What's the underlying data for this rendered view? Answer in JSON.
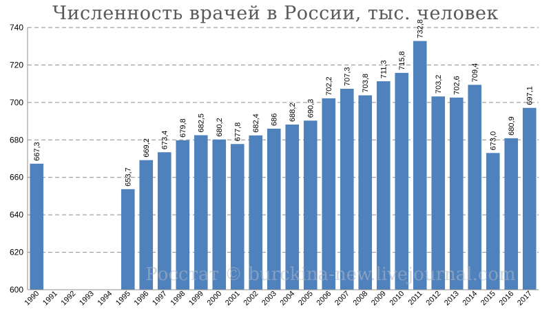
{
  "chart_data": {
    "type": "bar",
    "title": "Численность врачей в России, тыс. человек",
    "watermark": "Росстат © burckina-new.livejournal.com",
    "ylim": [
      600,
      740
    ],
    "yticks": [
      600,
      620,
      640,
      660,
      680,
      700,
      720,
      740
    ],
    "grid": true,
    "bar_color": "#4f81bd",
    "categories": [
      "1990",
      "1991",
      "1992",
      "1993",
      "1994",
      "1995",
      "1996",
      "1997",
      "1998",
      "1999",
      "2000",
      "2001",
      "2002",
      "2003",
      "2004",
      "2005",
      "2006",
      "2007",
      "2008",
      "2009",
      "2010",
      "2011",
      "2012",
      "2013",
      "2014",
      "2015",
      "2016",
      "2017"
    ],
    "values": [
      667.3,
      null,
      null,
      null,
      null,
      653.7,
      669.2,
      673.4,
      679.8,
      682.5,
      680.2,
      677.8,
      682.4,
      686,
      688.2,
      690.3,
      702.2,
      707.3,
      703.8,
      711.3,
      715.8,
      732.8,
      703.2,
      702.6,
      709.4,
      673.0,
      680.9,
      697.1
    ],
    "labels": [
      "667,3",
      "",
      "",
      "",
      "",
      "653,7",
      "669,2",
      "673,4",
      "679,8",
      "682,5",
      "680,2",
      "677,8",
      "682,4",
      "686",
      "688,2",
      "690,3",
      "702,2",
      "707,3",
      "703,8",
      "711,3",
      "715,8",
      "732,8",
      "703,2",
      "702,6",
      "709,4",
      "673,0",
      "680,9",
      "697,1"
    ]
  }
}
